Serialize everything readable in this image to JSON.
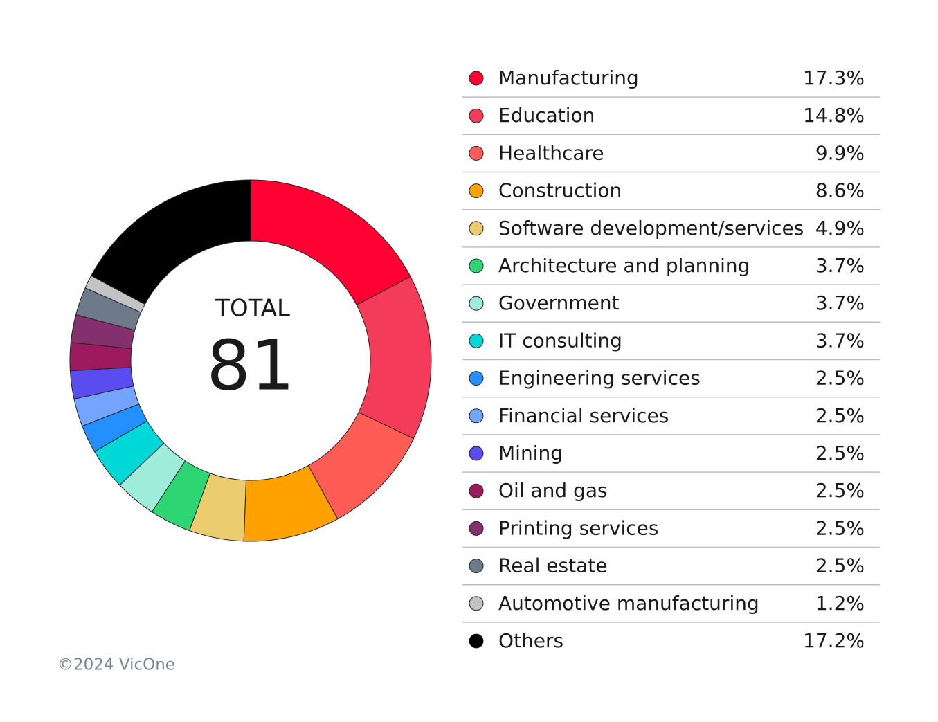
{
  "chart_data": {
    "type": "donut",
    "center_label": "TOTAL",
    "total": 81,
    "categories": [
      "Manufacturing",
      "Education",
      "Healthcare",
      "Construction",
      "Software development/services",
      "Architecture and planning",
      "Government",
      "IT consulting",
      "Engineering services",
      "Financial services",
      "Mining",
      "Oil and gas",
      "Printing services",
      "Real estate",
      "Automotive manufacturing",
      "Others"
    ],
    "values": [
      17.3,
      14.8,
      9.9,
      8.6,
      4.9,
      3.7,
      3.7,
      3.7,
      2.5,
      2.5,
      2.5,
      2.5,
      2.5,
      2.5,
      1.2,
      17.2
    ],
    "value_labels": [
      "17.3%",
      "14.8%",
      "9.9%",
      "8.6%",
      "4.9%",
      "3.7%",
      "3.7%",
      "3.7%",
      "2.5%",
      "2.5%",
      "2.5%",
      "2.5%",
      "2.5%",
      "2.5%",
      "1.2%",
      "17.2%"
    ],
    "colors": [
      "#ff0033",
      "#f43c5a",
      "#ff5c55",
      "#ffa200",
      "#ebcd6e",
      "#2ed573",
      "#9eecd9",
      "#00d7d7",
      "#2490ff",
      "#73a4ff",
      "#5a4df0",
      "#9e1a5e",
      "#84306f",
      "#6e7a8a",
      "#c3c3c3",
      "#000000"
    ],
    "source": "©2024 VicOne"
  }
}
